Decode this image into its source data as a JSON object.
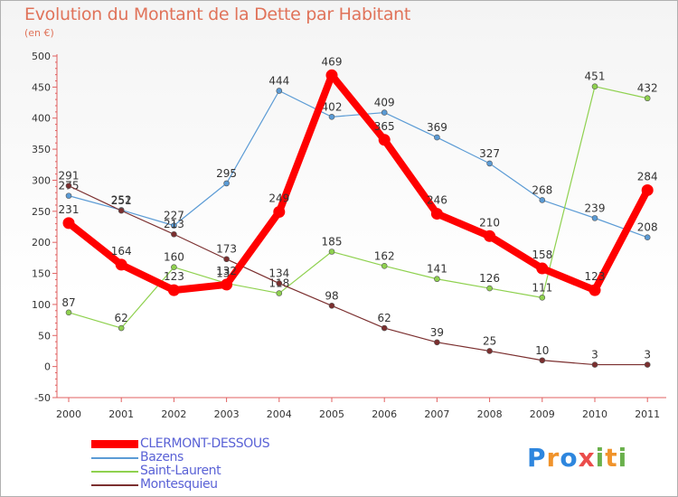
{
  "header": {
    "title": "Evolution du Montant de la Dette par Habitant",
    "subtitle": "(en €)"
  },
  "logo": {
    "text": "Proxiti"
  },
  "chart_data": {
    "type": "line",
    "title": "Evolution du Montant de la Dette par Habitant",
    "subtitle": "(en €)",
    "xlabel": "",
    "ylabel": "",
    "x": [
      "2000",
      "2001",
      "2002",
      "2003",
      "2004",
      "2005",
      "2006",
      "2007",
      "2008",
      "2009",
      "2010",
      "2011"
    ],
    "ylim": [
      -50,
      500
    ],
    "yticks": [
      -50,
      0,
      50,
      100,
      150,
      200,
      250,
      300,
      350,
      400,
      450,
      500
    ],
    "grid": false,
    "legend_position": "bottom-left",
    "series": [
      {
        "name": "CLERMONT-DESSOUS",
        "color": "#ff0000",
        "emphasis": true,
        "values": [
          231,
          164,
          123,
          132,
          249,
          469,
          365,
          246,
          210,
          158,
          123,
          284
        ]
      },
      {
        "name": "Bazens",
        "color": "#5b9bd5",
        "values": [
          275,
          252,
          227,
          295,
          444,
          402,
          409,
          369,
          327,
          268,
          239,
          208
        ]
      },
      {
        "name": "Saint-Laurent",
        "color": "#8fd14f",
        "values": [
          87,
          62,
          160,
          134,
          118,
          185,
          162,
          141,
          126,
          111,
          451,
          432
        ]
      },
      {
        "name": "Montesquieu",
        "color": "#7b2f2f",
        "values": [
          291,
          251,
          213,
          173,
          134,
          98,
          62,
          39,
          25,
          10,
          3,
          3
        ]
      }
    ]
  }
}
